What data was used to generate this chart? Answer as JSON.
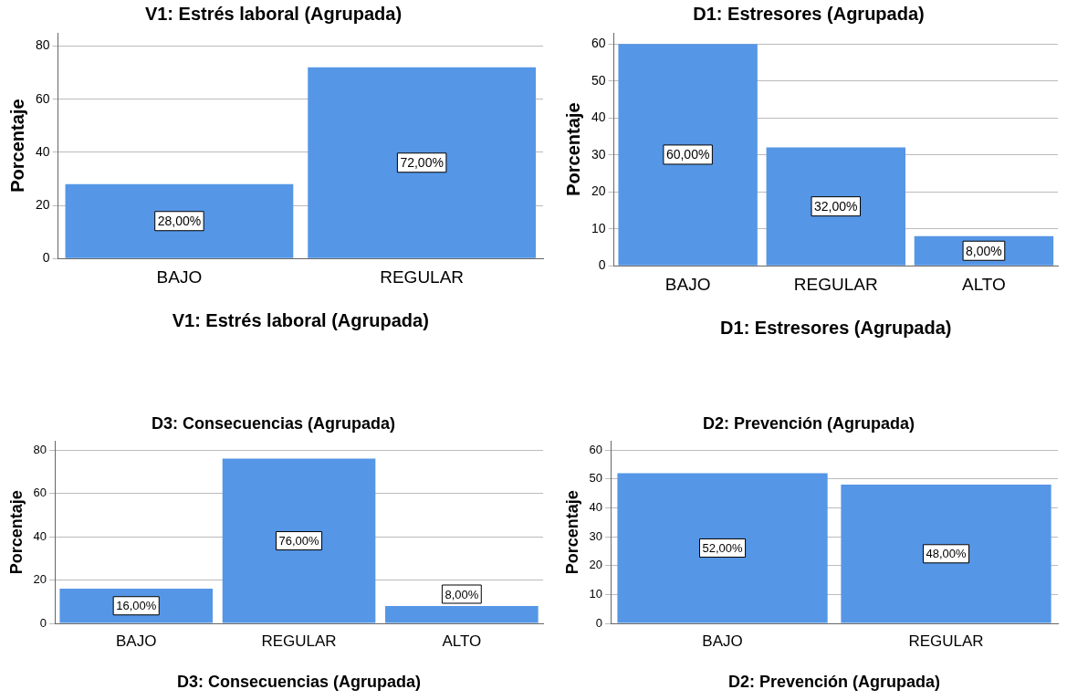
{
  "chart_data": [
    {
      "type": "bar",
      "title": "V1: Estrés laboral (Agrupada)",
      "xlabel": "V1: Estrés laboral (Agrupada)",
      "ylabel": "Porcentaje",
      "categories": [
        "BAJO",
        "REGULAR"
      ],
      "values": [
        28,
        72
      ],
      "value_labels": [
        "28,00%",
        "72,00%"
      ],
      "color": "#5596e6",
      "ylim": [
        0,
        85
      ],
      "yticks": [
        0,
        20,
        40,
        60,
        80
      ],
      "grid": "y",
      "legend": false
    },
    {
      "type": "bar",
      "title": "D1: Estresores (Agrupada)",
      "xlabel": "D1: Estresores (Agrupada)",
      "ylabel": "Porcentaje",
      "categories": [
        "BAJO",
        "REGULAR",
        "ALTO"
      ],
      "values": [
        60,
        32,
        8
      ],
      "value_labels": [
        "60,00%",
        "32,00%",
        "8,00%"
      ],
      "color": "#5596e6",
      "ylim": [
        0,
        63
      ],
      "yticks": [
        0,
        10,
        20,
        30,
        40,
        50,
        60
      ],
      "grid": "y",
      "legend": false
    },
    {
      "type": "bar",
      "title": "D3: Consecuencias (Agrupada)",
      "xlabel": "D3: Consecuencias (Agrupada)",
      "ylabel": "Porcentaje",
      "categories": [
        "BAJO",
        "REGULAR",
        "ALTO"
      ],
      "values": [
        16,
        76,
        8
      ],
      "value_labels": [
        "16,00%",
        "76,00%",
        "8,00%"
      ],
      "color": "#5596e6",
      "ylim": [
        0,
        84
      ],
      "yticks": [
        0,
        20,
        40,
        60,
        80
      ],
      "grid": "y",
      "legend": false
    },
    {
      "type": "bar",
      "title": "D2: Prevención (Agrupada)",
      "xlabel": "D2: Prevención (Agrupada)",
      "ylabel": "Porcentaje",
      "categories": [
        "BAJO",
        "REGULAR"
      ],
      "values": [
        52,
        48
      ],
      "value_labels": [
        "52,00%",
        "48,00%"
      ],
      "color": "#5596e6",
      "ylim": [
        0,
        63
      ],
      "yticks": [
        0,
        10,
        20,
        30,
        40,
        50,
        60
      ],
      "grid": "y",
      "legend": false
    }
  ]
}
